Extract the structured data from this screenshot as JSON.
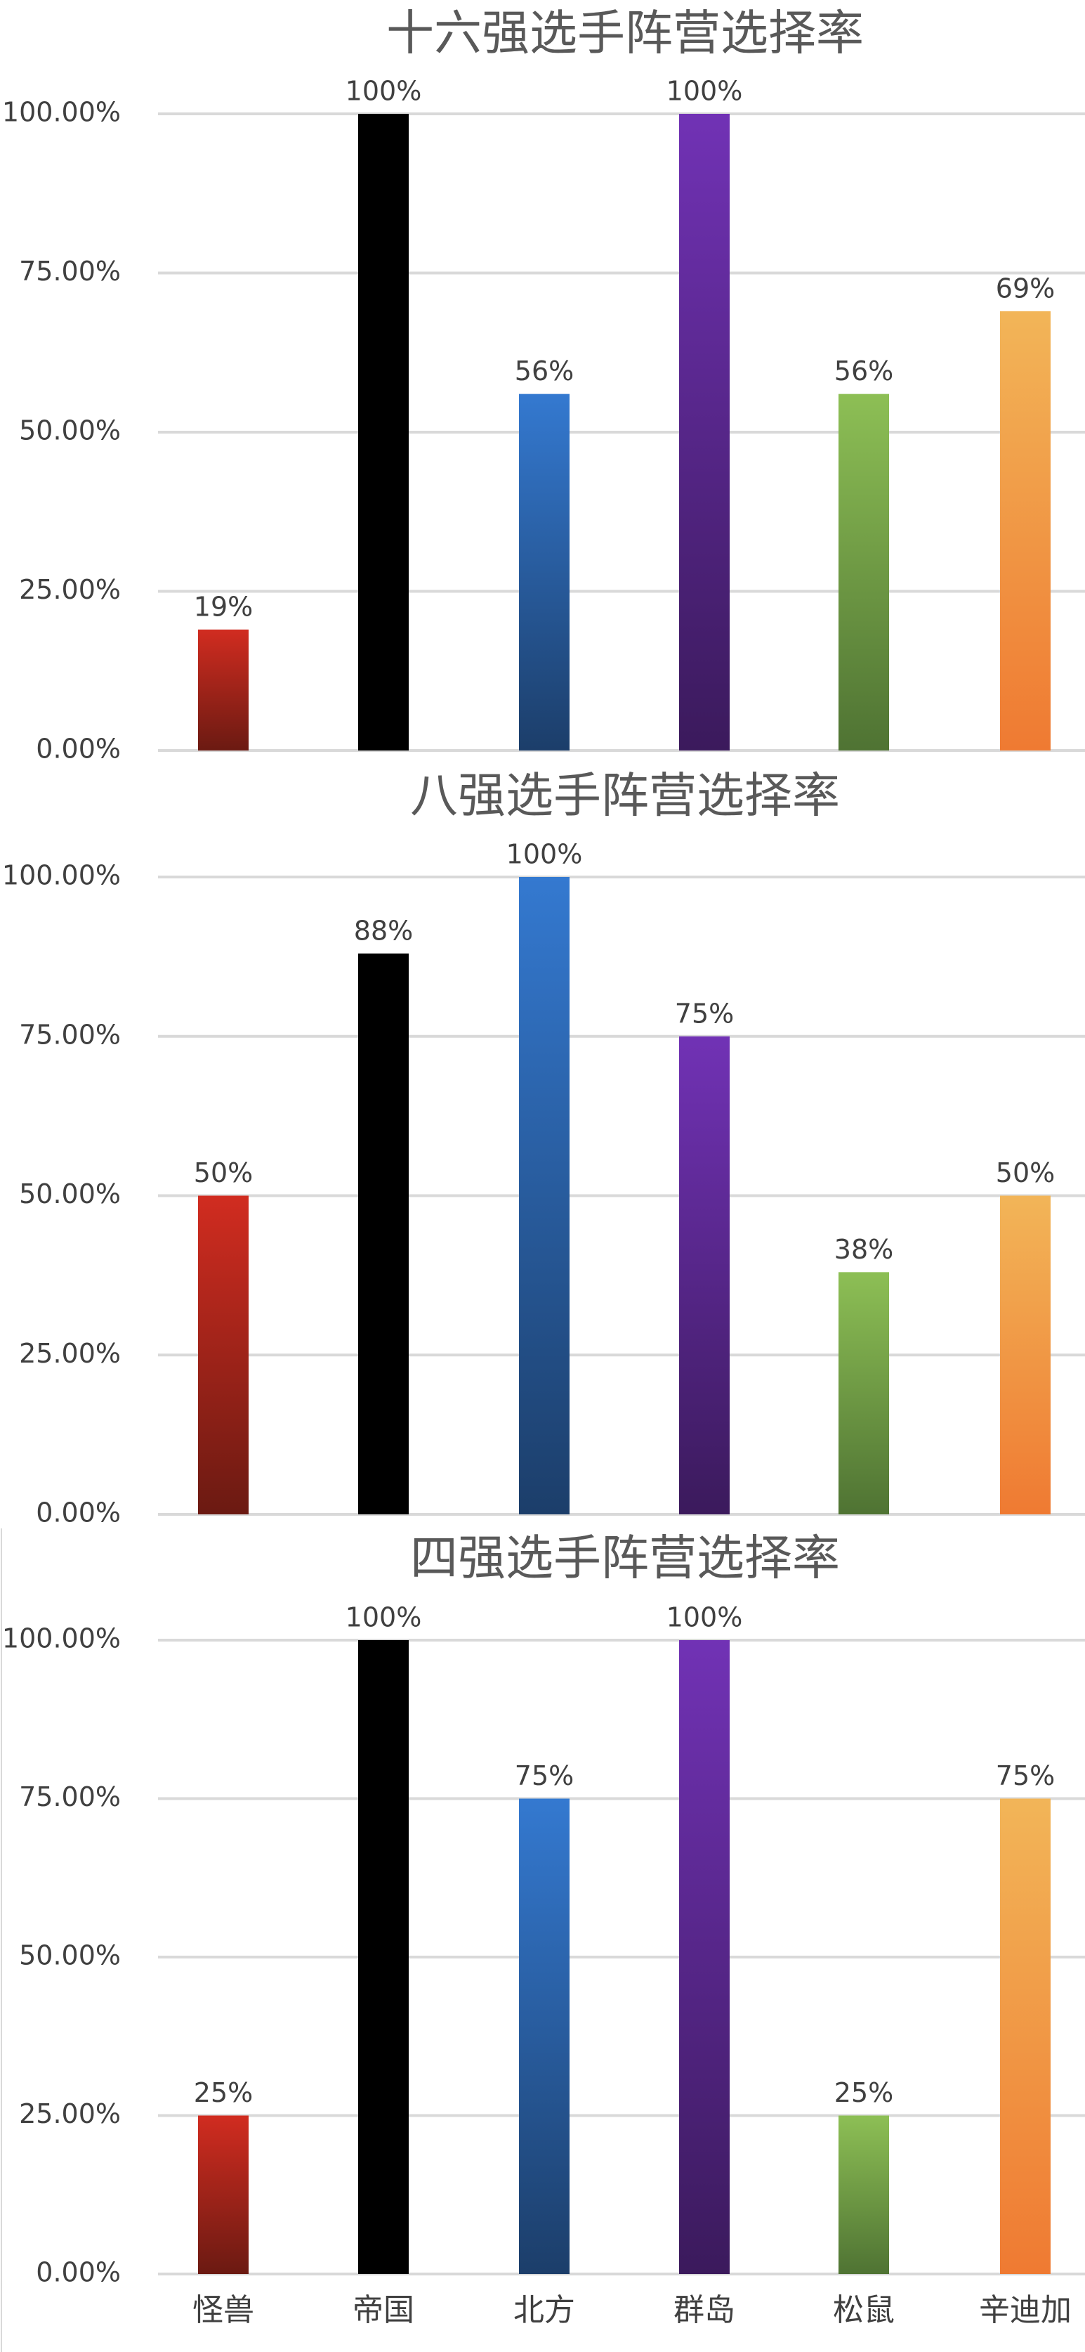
{
  "chart_data": [
    {
      "type": "bar",
      "title": "十六强选手阵营选择率",
      "categories": [
        "怪兽",
        "帝国",
        "北方",
        "群岛",
        "松鼠",
        "辛迪加"
      ],
      "values": [
        0.19,
        1.0,
        0.56,
        1.0,
        0.56,
        0.69
      ],
      "value_labels": [
        "19%",
        "100%",
        "56%",
        "100%",
        "56%",
        "69%"
      ],
      "ylim": [
        0,
        1
      ],
      "y_ticks": [
        "0.00%",
        "25.00%",
        "50.00%",
        "75.00%",
        "100.00%"
      ],
      "grid": true,
      "show_category_labels": false
    },
    {
      "type": "bar",
      "title": "八强选手阵营选择率",
      "categories": [
        "怪兽",
        "帝国",
        "北方",
        "群岛",
        "松鼠",
        "辛迪加"
      ],
      "values": [
        0.5,
        0.88,
        1.0,
        0.75,
        0.38,
        0.5
      ],
      "value_labels": [
        "50%",
        "88%",
        "100%",
        "75%",
        "38%",
        "50%"
      ],
      "ylim": [
        0,
        1
      ],
      "y_ticks": [
        "0.00%",
        "25.00%",
        "50.00%",
        "75.00%",
        "100.00%"
      ],
      "grid": true,
      "show_category_labels": false
    },
    {
      "type": "bar",
      "title": "四强选手阵营选择率",
      "categories": [
        "怪兽",
        "帝国",
        "北方",
        "群岛",
        "松鼠",
        "辛迪加"
      ],
      "values": [
        0.25,
        1.0,
        0.75,
        1.0,
        0.25,
        0.75
      ],
      "value_labels": [
        "25%",
        "100%",
        "75%",
        "100%",
        "25%",
        "75%"
      ],
      "ylim": [
        0,
        1
      ],
      "y_ticks": [
        "0.00%",
        "25.00%",
        "50.00%",
        "75.00%",
        "100.00%"
      ],
      "grid": true,
      "show_category_labels": true
    }
  ],
  "colors": {
    "怪兽": [
      "#d12c20",
      "#6b1a12"
    ],
    "帝国": [
      "#000000",
      "#000000"
    ],
    "北方": [
      "#3479d0",
      "#1c3e6a"
    ],
    "群岛": [
      "#7132b5",
      "#3b1a5c"
    ],
    "松鼠": [
      "#8dbf55",
      "#4f7333"
    ],
    "辛迪加": [
      "#f2b558",
      "#ef7a32"
    ]
  }
}
